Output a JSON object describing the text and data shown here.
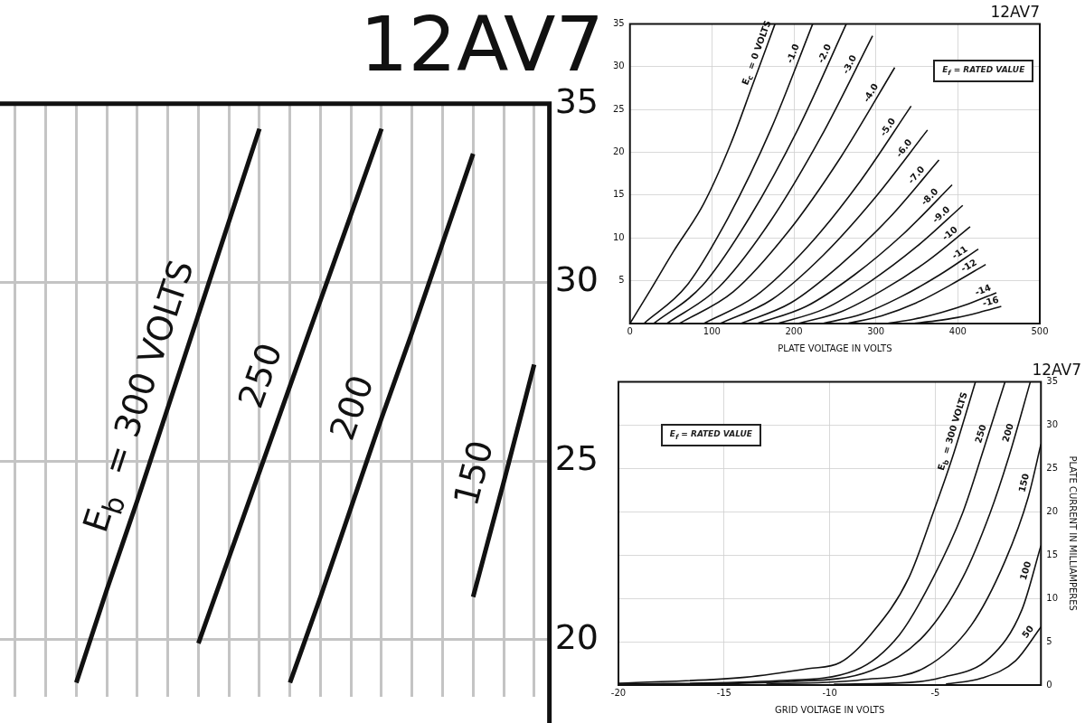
{
  "chart_data": [
    {
      "type": "line",
      "title": "12AV7",
      "categories": [
        null,
        null,
        null,
        null,
        null,
        null,
        null,
        null,
        null,
        null,
        null,
        null,
        null,
        null,
        null,
        null,
        null,
        null
      ],
      "series": [
        {
          "name": "E$_{b}$ = 300 VOLTS",
          "color": "#111111",
          "values": [
            null,
            null,
            18.8,
            21.4,
            23.9,
            26.5,
            29.1,
            31.7,
            34.3,
            null,
            null,
            null,
            null,
            null,
            null,
            null,
            null,
            null
          ]
        },
        {
          "name": "250",
          "color": "#111111",
          "values": [
            null,
            null,
            null,
            null,
            null,
            null,
            19.9,
            22.3,
            24.7,
            27.1,
            29.5,
            31.9,
            34.3,
            null,
            null,
            null,
            null,
            null
          ]
        },
        {
          "name": "200",
          "color": "#111111",
          "values": [
            null,
            null,
            null,
            null,
            null,
            null,
            null,
            null,
            null,
            18.8,
            21.2,
            23.7,
            26.2,
            28.6,
            31.1,
            33.6,
            null,
            null
          ]
        },
        {
          "name": "150",
          "color": "#111111",
          "values": [
            null,
            null,
            null,
            null,
            null,
            null,
            null,
            null,
            null,
            null,
            null,
            null,
            null,
            null,
            null,
            21.2,
            24.4,
            27.7
          ]
        }
      ],
      "ylim": [
        18.4,
        35
      ],
      "yticks": [
        20,
        25,
        30,
        35
      ],
      "tick_labels": "y",
      "grid": true,
      "marker": "none"
    },
    {
      "type": "line",
      "title": "12AV7",
      "xlabel": "PLATE VOLTAGE IN VOLTS",
      "annotations": [
        "E$_{f}$ = RATED VALUE"
      ],
      "series": [
        {
          "name": "E$_{c}$ = 0 VOLTS",
          "color": "#111111",
          "x": [
            0,
            23,
            53,
            90,
            123,
            149,
            177
          ],
          "values": [
            0,
            3.6,
            8.4,
            14.0,
            21.0,
            27.7,
            35
          ]
        },
        {
          "name": "-1.0",
          "color": "#111111",
          "x": [
            17,
            69,
            120,
            172,
            223
          ],
          "values": [
            0,
            4.4,
            12.4,
            22.7,
            35
          ]
        },
        {
          "name": "-2.0",
          "color": "#111111",
          "x": [
            29,
            88,
            146,
            205,
            264
          ],
          "values": [
            0,
            4.4,
            12.4,
            22.7,
            35
          ]
        },
        {
          "name": "-3.0",
          "color": "#111111",
          "x": [
            45,
            108,
            171,
            233,
            296
          ],
          "values": [
            0,
            4.2,
            11.9,
            21.8,
            33.6
          ]
        },
        {
          "name": "-4.0",
          "color": "#111111",
          "x": [
            60,
            126,
            192,
            257,
            323
          ],
          "values": [
            0,
            3.7,
            10.6,
            19.4,
            29.9
          ]
        },
        {
          "name": "-5.0",
          "color": "#111111",
          "x": [
            90,
            153,
            217,
            280,
            343
          ],
          "values": [
            0,
            3.2,
            9.0,
            16.5,
            25.4
          ]
        },
        {
          "name": "-6.0",
          "color": "#111111",
          "x": [
            110,
            173,
            236,
            299,
            363
          ],
          "values": [
            0,
            2.8,
            8.0,
            14.7,
            22.6
          ]
        },
        {
          "name": "-7.0",
          "color": "#111111",
          "x": [
            135,
            196,
            256,
            317,
            377
          ],
          "values": [
            0,
            2.4,
            6.8,
            12.4,
            19.1
          ]
        },
        {
          "name": "-8.0",
          "color": "#111111",
          "x": [
            155,
            215,
            274,
            334,
            393
          ],
          "values": [
            0,
            2.0,
            5.7,
            10.5,
            16.2
          ]
        },
        {
          "name": "-9.0",
          "color": "#111111",
          "x": [
            180,
            237,
            293,
            350,
            406
          ],
          "values": [
            0,
            1.7,
            4.9,
            9.0,
            13.8
          ]
        },
        {
          "name": "-10",
          "color": "#111111",
          "x": [
            205,
            258,
            310,
            363,
            415
          ],
          "values": [
            0,
            1.4,
            4.0,
            7.3,
            11.3
          ]
        },
        {
          "name": "-11",
          "color": "#111111",
          "x": [
            235,
            283,
            330,
            378,
            425
          ],
          "values": [
            0,
            1.1,
            3.1,
            5.7,
            8.7
          ]
        },
        {
          "name": "-12",
          "color": "#111111",
          "x": [
            265,
            307,
            349,
            391,
            434
          ],
          "values": [
            0,
            0.9,
            2.4,
            4.5,
            6.9
          ]
        },
        {
          "name": "-14",
          "color": "#111111",
          "x": [
            313,
            346,
            380,
            413,
            447
          ],
          "values": [
            0,
            0.5,
            1.3,
            2.3,
            3.6
          ]
        },
        {
          "name": "-16",
          "color": "#111111",
          "x": [
            345,
            372,
            399,
            426,
            453
          ],
          "values": [
            0,
            0.3,
            0.7,
            1.3,
            2.0
          ]
        }
      ],
      "xlim": [
        0,
        500
      ],
      "xticks": [
        0,
        100,
        200,
        300,
        400,
        500
      ],
      "ylim": [
        0,
        35
      ],
      "yticks": [
        {
          "value": 0,
          "label": null
        },
        5,
        10,
        15,
        20,
        25,
        30,
        35
      ],
      "grid": true,
      "marker": "none"
    },
    {
      "type": "line",
      "title": "12AV7",
      "xlabel": "GRID VOLTAGE IN VOLTS",
      "ylabel": "PLATE CURRENT IN MILLIAMPERES",
      "annotations": [
        "E$_{f}$ = RATED VALUE"
      ],
      "series": [
        {
          "name": "E$_{b}$ = 300 VOLTS",
          "color": "#111111",
          "x": [
            -20,
            -14,
            -11,
            -9.5,
            -8,
            -6.25,
            -5.1,
            -4.2,
            -3.1
          ],
          "values": [
            0.2,
            0.9,
            1.9,
            2.6,
            6.0,
            12.4,
            19.9,
            26.2,
            35
          ]
        },
        {
          "name": "250",
          "color": "#111111",
          "x": [
            -20,
            -12.5,
            -8.8,
            -6.7,
            -5.1,
            -3.7,
            -2.7,
            -1.7
          ],
          "values": [
            0.1,
            0.5,
            1.7,
            5.8,
            12.4,
            19.9,
            27.3,
            35
          ]
        },
        {
          "name": "200",
          "color": "#111111",
          "x": [
            -18,
            -12,
            -8,
            -5.5,
            -3.7,
            -2.4,
            -1.5,
            -0.5
          ],
          "values": [
            0.1,
            0.4,
            1.7,
            5.8,
            12.4,
            19.9,
            26.5,
            35
          ]
        },
        {
          "name": "150",
          "color": "#111111",
          "x": [
            -13,
            -8.5,
            -5.5,
            -3.3,
            -1.7,
            -0.6,
            0
          ],
          "values": [
            0.1,
            0.6,
            2.0,
            6.9,
            14.3,
            21.7,
            27.8
          ]
        },
        {
          "name": "100",
          "color": "#111111",
          "x": [
            -9.8,
            -6.2,
            -4.8,
            -2.4,
            -0.9,
            0
          ],
          "values": [
            0.1,
            0.3,
            0.8,
            3.2,
            8.7,
            16.1
          ]
        },
        {
          "name": "50",
          "color": "#111111",
          "x": [
            -4.5,
            -2.8,
            -1.2,
            0
          ],
          "values": [
            0.1,
            0.8,
            2.8,
            6.7
          ]
        }
      ],
      "xlim": [
        -20,
        0
      ],
      "xticks": [
        -20,
        -15,
        -10,
        -5,
        {
          "value": 0,
          "label": null
        }
      ],
      "ylim": [
        0,
        35
      ],
      "yticks": [
        0,
        5,
        10,
        15,
        20,
        25,
        30,
        35
      ],
      "grid": true,
      "marker": "none"
    }
  ]
}
